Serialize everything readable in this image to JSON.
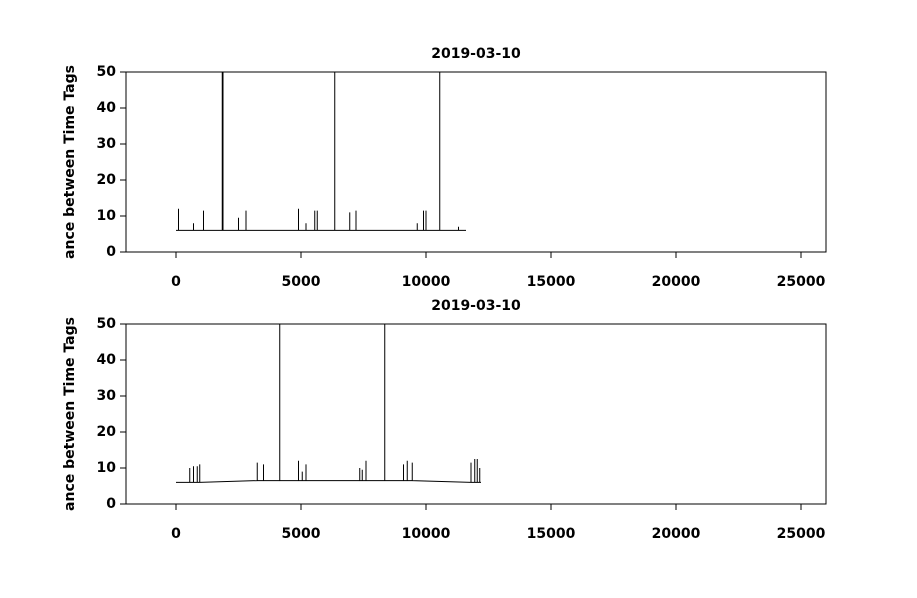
{
  "chart_data": [
    {
      "type": "line",
      "title": "2019-03-10",
      "y_label": "ance between Time Tags",
      "xlim": [
        -2000,
        26000
      ],
      "ylim": [
        0,
        50
      ],
      "xticks": [
        0,
        5000,
        10000,
        15000,
        20000,
        25000
      ],
      "yticks": [
        0,
        10,
        20,
        30,
        40,
        50
      ],
      "series": [
        {
          "color": "#000000",
          "x": [
            0,
            100,
            100,
            100,
            700,
            700,
            700,
            1100,
            1100,
            1100,
            1850,
            1850,
            1850,
            1880,
            1880,
            1880,
            2500,
            2500,
            2500,
            2800,
            2800,
            2800,
            4900,
            4900,
            4900,
            5200,
            5200,
            5200,
            5550,
            5550,
            5550,
            5650,
            5650,
            5650,
            6350,
            6350,
            6350,
            6950,
            6950,
            6950,
            7200,
            7200,
            7200,
            9650,
            9650,
            9650,
            9900,
            9900,
            9900,
            10000,
            10000,
            10000,
            10550,
            10550,
            10550,
            11300,
            11300,
            11300,
            11600
          ],
          "values": [
            6,
            6,
            12,
            6,
            6,
            8,
            6,
            6,
            11.5,
            6,
            6,
            50,
            6,
            6,
            50,
            6,
            6,
            9.5,
            6,
            6,
            11.5,
            6,
            6,
            12,
            6,
            6,
            8,
            6,
            6,
            11.5,
            6,
            6,
            11.5,
            6,
            6,
            50,
            6,
            6,
            11,
            6,
            6,
            11.5,
            6,
            6,
            8,
            6,
            6,
            11.5,
            6,
            6,
            11.5,
            6,
            6,
            50,
            6,
            6,
            7,
            6,
            6
          ]
        }
      ]
    },
    {
      "type": "line",
      "title": "2019-03-10",
      "y_label": "ance between Time Tags",
      "xlim": [
        -2000,
        26000
      ],
      "ylim": [
        0,
        50
      ],
      "xticks": [
        0,
        5000,
        10000,
        15000,
        20000,
        25000
      ],
      "yticks": [
        0,
        10,
        20,
        30,
        40,
        50
      ],
      "series": [
        {
          "color": "#000000",
          "x": [
            0,
            550,
            550,
            550,
            700,
            700,
            700,
            850,
            850,
            850,
            950,
            950,
            950,
            3250,
            3250,
            3250,
            3500,
            3500,
            3500,
            4150,
            4150,
            4150,
            4900,
            4900,
            4900,
            5050,
            5050,
            5050,
            5200,
            5200,
            5200,
            7350,
            7350,
            7350,
            7450,
            7450,
            7450,
            7600,
            7600,
            7600,
            8350,
            8350,
            8350,
            9100,
            9100,
            9100,
            9250,
            9250,
            9250,
            9450,
            9450,
            9450,
            11800,
            11800,
            11800,
            11950,
            11950,
            11950,
            12050,
            12050,
            12050,
            12150,
            12150,
            12150,
            12200
          ],
          "values": [
            6,
            6,
            10,
            6,
            6,
            10.5,
            6,
            6,
            10.5,
            6,
            6,
            11,
            6,
            6.5,
            11.5,
            6.5,
            6.5,
            11,
            6.5,
            6.5,
            50,
            6.5,
            6.5,
            12,
            6.5,
            6.5,
            9,
            6.5,
            6.5,
            11,
            6.5,
            6.5,
            10,
            6.5,
            6.5,
            9.5,
            6.5,
            6.5,
            12,
            6.5,
            6.5,
            50,
            6.5,
            6.5,
            11,
            6.5,
            6.5,
            12,
            6.5,
            6.5,
            11.5,
            6.5,
            6,
            11.5,
            6,
            6,
            12.5,
            6,
            6,
            12.5,
            6,
            6,
            10,
            6,
            6
          ]
        }
      ]
    }
  ]
}
